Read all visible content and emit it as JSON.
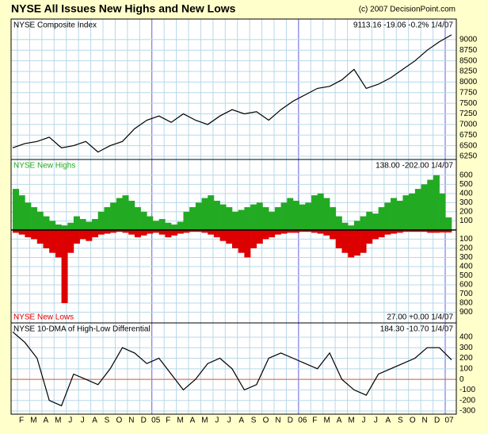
{
  "header": {
    "title": "NYSE All Issues New Highs and New Lows",
    "copyright": "(c) 2007 DecisionPoint.com"
  },
  "month_labels": [
    "F",
    "M",
    "A",
    "M",
    "J",
    "J",
    "A",
    "S",
    "O",
    "N",
    "D",
    "05",
    "F",
    "M",
    "A",
    "M",
    "J",
    "J",
    "A",
    "S",
    "O",
    "N",
    "D",
    "06",
    "F",
    "M",
    "A",
    "M",
    "J",
    "J",
    "A",
    "S",
    "O",
    "N",
    "D",
    "07"
  ],
  "chart_data": [
    {
      "type": "line",
      "title": "NYSE Composite Index",
      "readout": "9113.16 -19.06 -0.2% 1/4/07",
      "color": "#000000",
      "values": [
        6450,
        6550,
        6600,
        6700,
        6450,
        6500,
        6600,
        6350,
        6500,
        6600,
        6900,
        7100,
        7200,
        7050,
        7250,
        7100,
        7000,
        7200,
        7350,
        7250,
        7300,
        7100,
        7350,
        7550,
        7700,
        7850,
        7900,
        8050,
        8300,
        7850,
        7950,
        8100,
        8300,
        8500,
        8750,
        8950,
        9113.16
      ],
      "ylim": [
        6175,
        9485
      ],
      "yticks": [
        6250,
        6500,
        6750,
        7000,
        7250,
        7500,
        7750,
        8000,
        8250,
        8500,
        8750,
        9000
      ]
    },
    {
      "type": "bar",
      "title": "NYSE New Highs",
      "readout": "138.00 -202.00 1/4/07",
      "subtitle": "NYSE New Lows",
      "sub_readout": "27.00 +0.00 1/4/07",
      "series": [
        {
          "name": "NYSE New Highs",
          "color": "#22aa22",
          "values": [
            450,
            380,
            300,
            250,
            200,
            150,
            100,
            60,
            50,
            80,
            150,
            120,
            90,
            120,
            200,
            250,
            300,
            350,
            380,
            320,
            250,
            200,
            150,
            100,
            120,
            80,
            60,
            90,
            200,
            250,
            300,
            350,
            380,
            320,
            280,
            250,
            200,
            220,
            250,
            280,
            300,
            250,
            200,
            250,
            300,
            350,
            320,
            280,
            300,
            380,
            400,
            350,
            250,
            150,
            80,
            50,
            100,
            150,
            200,
            180,
            250,
            300,
            350,
            320,
            380,
            400,
            450,
            500,
            550,
            600,
            400,
            138
          ]
        },
        {
          "name": "NYSE New Lows",
          "color": "#dd0000",
          "values": [
            -30,
            -50,
            -80,
            -100,
            -150,
            -200,
            -250,
            -300,
            -800,
            -250,
            -150,
            -100,
            -120,
            -80,
            -50,
            -40,
            -30,
            -20,
            -30,
            -50,
            -80,
            -60,
            -40,
            -30,
            -50,
            -80,
            -60,
            -40,
            -30,
            -20,
            -20,
            -30,
            -50,
            -80,
            -120,
            -150,
            -200,
            -250,
            -300,
            -200,
            -150,
            -100,
            -80,
            -50,
            -40,
            -30,
            -30,
            -20,
            -20,
            -30,
            -40,
            -60,
            -100,
            -200,
            -250,
            -300,
            -280,
            -250,
            -150,
            -100,
            -80,
            -50,
            -40,
            -30,
            -20,
            -20,
            -20,
            -20,
            -30,
            -30,
            -27,
            -27
          ]
        }
      ],
      "ylim": [
        -1017,
        772
      ],
      "yticks": [
        600,
        500,
        400,
        300,
        200,
        100,
        {
          "value": -100,
          "label": "100"
        },
        {
          "value": -200,
          "label": "200"
        },
        {
          "value": -300,
          "label": "300"
        },
        {
          "value": -400,
          "label": "400"
        },
        {
          "value": -500,
          "label": "500"
        },
        {
          "value": -600,
          "label": "600"
        },
        {
          "value": -700,
          "label": "700"
        },
        {
          "value": -800,
          "label": "800"
        },
        {
          "value": -900,
          "label": "900"
        }
      ]
    },
    {
      "type": "line",
      "title": "NYSE 10-DMA of High-Low Differential",
      "readout": "184.30 -10.70 1/4/07",
      "color": "#000000",
      "zero_color": "#e06030",
      "values": [
        450,
        350,
        200,
        -200,
        -250,
        50,
        0,
        -50,
        100,
        300,
        250,
        150,
        200,
        50,
        -100,
        0,
        150,
        200,
        100,
        -100,
        -50,
        200,
        250,
        200,
        150,
        100,
        250,
        0,
        -100,
        -150,
        50,
        100,
        150,
        200,
        300,
        300,
        184.3
      ],
      "ylim": [
        -330,
        535
      ],
      "yticks": [
        400,
        300,
        200,
        100,
        0,
        -100,
        -200,
        -300
      ]
    }
  ]
}
